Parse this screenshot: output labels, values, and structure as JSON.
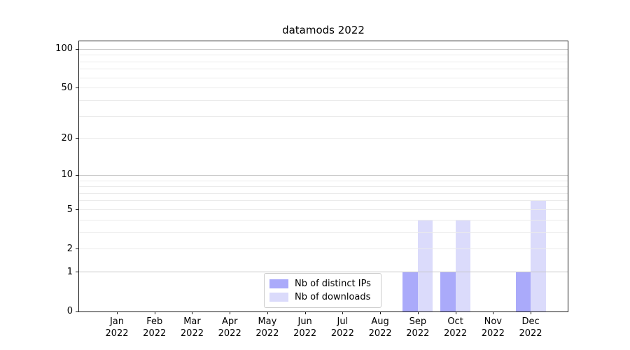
{
  "figure": {
    "title": "datamods 2022",
    "background": "#ffffff"
  },
  "chart_data": {
    "type": "bar",
    "title": "datamods 2022",
    "x": [
      "Jan 2022",
      "Feb 2022",
      "Mar 2022",
      "Apr 2022",
      "May 2022",
      "Jun 2022",
      "Jul 2022",
      "Aug 2022",
      "Sep 2022",
      "Oct 2022",
      "Nov 2022",
      "Dec 2022"
    ],
    "x_months": [
      "Jan",
      "Feb",
      "Mar",
      "Apr",
      "May",
      "Jun",
      "Jul",
      "Aug",
      "Sep",
      "Oct",
      "Nov",
      "Dec"
    ],
    "x_year": "2022",
    "series": [
      {
        "name": "Nb of distinct IPs",
        "color": "#aaaafa",
        "values": [
          0,
          0,
          0,
          0,
          0,
          0,
          0,
          0,
          1,
          1,
          0,
          1
        ]
      },
      {
        "name": "Nb of downloads",
        "color": "#dbdbfb",
        "values": [
          0,
          0,
          0,
          0,
          0,
          0,
          0,
          0,
          4,
          4,
          0,
          6
        ]
      }
    ],
    "xlabel": "",
    "ylabel": "",
    "yscale": "log1p",
    "ylim": [
      0,
      115
    ],
    "y_tick_labels": [
      0,
      1,
      2,
      5,
      10,
      20,
      50,
      100
    ],
    "y_major_gridlines": [
      1,
      10,
      100
    ],
    "y_minor_gridlines": [
      2,
      3,
      4,
      5,
      6,
      7,
      8,
      9,
      20,
      30,
      40,
      50,
      60,
      70,
      80,
      90
    ],
    "grid": true,
    "legend_position": "lower center"
  },
  "colors": {
    "major_grid": "#c6c6c6",
    "minor_grid": "#ebebeb",
    "spine": "#1a1a1a",
    "text": "#000000"
  }
}
